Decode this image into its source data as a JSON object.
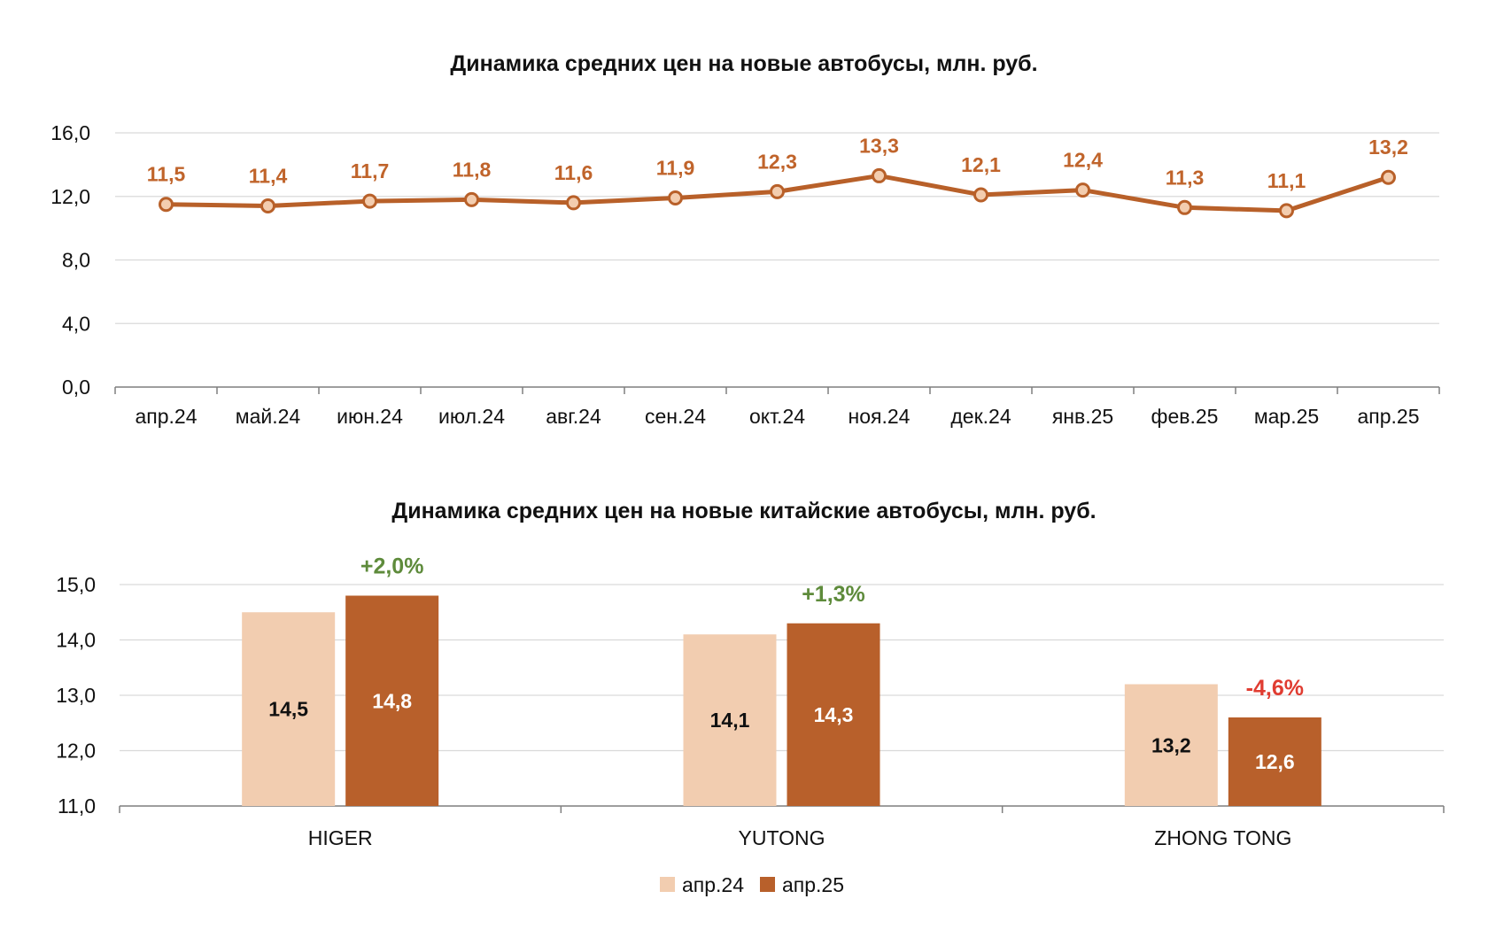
{
  "colors": {
    "line": "#B86029",
    "line_label": "#C0642B",
    "marker_fill": "#F3CDAF",
    "bar_prev": "#F2CDB0",
    "bar_curr": "#B8602B",
    "positive": "#5E8B3B",
    "negative": "#E03C31",
    "grid": "#D9D9D9",
    "axis": "#7F7F7F"
  },
  "chart_data": [
    {
      "type": "line",
      "title": "Динамика средних цен на новые автобусы, млн. руб.",
      "xlabel": "",
      "ylabel": "",
      "ylim": [
        0,
        16
      ],
      "yticks": [
        "0,0",
        "4,0",
        "8,0",
        "12,0",
        "16,0"
      ],
      "grid": true,
      "categories": [
        "апр.24",
        "май.24",
        "июн.24",
        "июл.24",
        "авг.24",
        "сен.24",
        "окт.24",
        "ноя.24",
        "дек.24",
        "янв.25",
        "фев.25",
        "мар.25",
        "апр.25"
      ],
      "values": [
        11.5,
        11.4,
        11.7,
        11.8,
        11.6,
        11.9,
        12.3,
        13.3,
        12.1,
        12.4,
        11.3,
        11.1,
        13.2
      ],
      "data_labels": [
        "11,5",
        "11,4",
        "11,7",
        "11,8",
        "11,6",
        "11,9",
        "12,3",
        "13,3",
        "12,1",
        "12,4",
        "11,3",
        "11,1",
        "13,2"
      ]
    },
    {
      "type": "bar",
      "title": "Динамика средних цен на новые китайские автобусы, млн. руб.",
      "xlabel": "",
      "ylabel": "",
      "ylim": [
        11,
        15
      ],
      "yticks": [
        "11,0",
        "12,0",
        "13,0",
        "14,0",
        "15,0"
      ],
      "grid": true,
      "legend_position": "bottom",
      "categories": [
        "HIGER",
        "YUTONG",
        "ZHONG TONG"
      ],
      "series": [
        {
          "name": "апр.24",
          "values": [
            14.5,
            14.1,
            13.2
          ],
          "data_labels": [
            "14,5",
            "14,1",
            "13,2"
          ]
        },
        {
          "name": "апр.25",
          "values": [
            14.8,
            14.3,
            12.6
          ],
          "data_labels": [
            "14,8",
            "14,3",
            "12,6"
          ]
        }
      ],
      "changes": [
        "+2,0%",
        "+1,3%",
        "-4,6%"
      ],
      "changes_positive": [
        true,
        true,
        false
      ]
    }
  ]
}
